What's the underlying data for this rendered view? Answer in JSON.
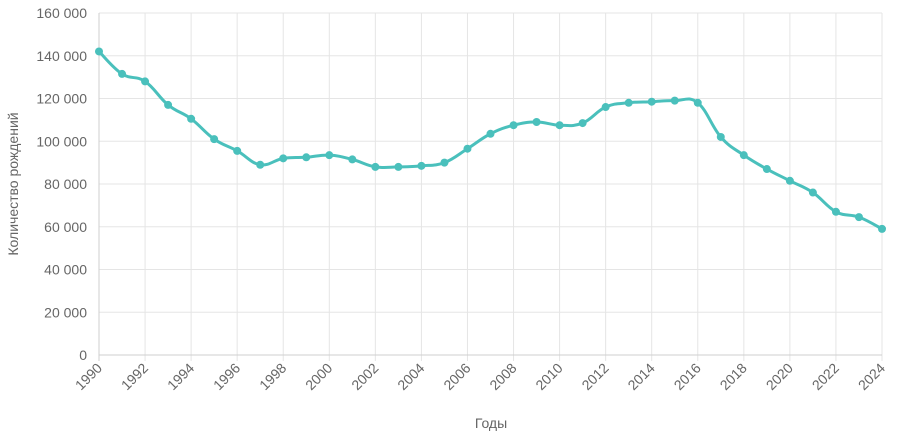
{
  "chart_data": {
    "type": "line",
    "xlabel": "Годы",
    "ylabel": "Количество рождений",
    "ylim": [
      0,
      160000
    ],
    "xlim": [
      1990,
      2024
    ],
    "grid": true,
    "line_color": "#4ac0bc",
    "y_ticks": [
      0,
      20000,
      40000,
      60000,
      80000,
      100000,
      120000,
      140000,
      160000
    ],
    "y_tick_labels": [
      "0",
      "20 000",
      "40 000",
      "60 000",
      "80 000",
      "100 000",
      "120 000",
      "140 000",
      "160 000"
    ],
    "x_tick_labels": [
      "1990",
      "1992",
      "1994",
      "1996",
      "1998",
      "2000",
      "2002",
      "2004",
      "2006",
      "2008",
      "2010",
      "2012",
      "2014",
      "2016",
      "2018",
      "2020",
      "2022",
      "2024"
    ],
    "series": [
      {
        "x": [
          1990,
          1991,
          1992,
          1993,
          1994,
          1995,
          1996,
          1997,
          1998,
          1999,
          2000,
          2001,
          2002,
          2003,
          2004,
          2005,
          2006,
          2007,
          2008,
          2009,
          2010,
          2011,
          2012,
          2013,
          2014,
          2015,
          2016,
          2017,
          2018,
          2019,
          2020,
          2021,
          2022,
          2023,
          2024
        ],
        "values": [
          142000,
          131500,
          128000,
          117000,
          110500,
          101000,
          95500,
          89000,
          92000,
          92500,
          93500,
          91500,
          88000,
          88000,
          88500,
          90000,
          96500,
          103500,
          107500,
          109000,
          107500,
          108500,
          116000,
          118000,
          118500,
          119000,
          118000,
          102000,
          93500,
          87000,
          81500,
          76000,
          67000,
          64500,
          59000
        ]
      }
    ]
  }
}
